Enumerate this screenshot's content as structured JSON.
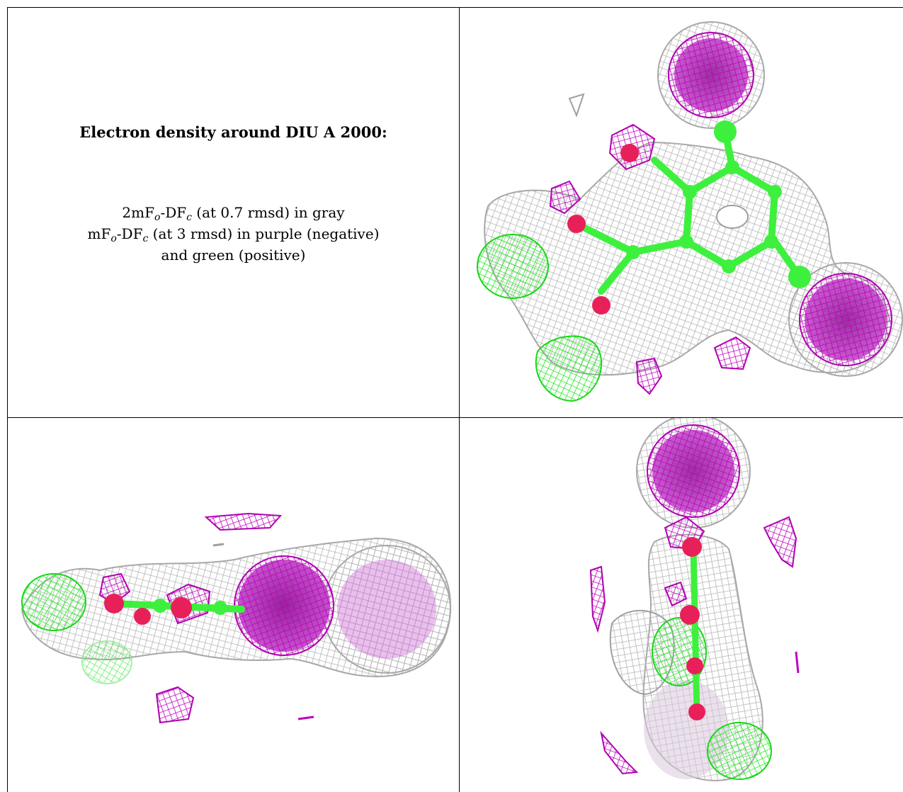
{
  "figure": {
    "title": "Electron density around DIU A 2000:",
    "lines": [
      {
        "pre": "2mF",
        "s1": "o",
        "mid": "-DF",
        "s2": "c",
        "post": " (at 0.7 rmsd) in gray"
      },
      {
        "pre": "mF",
        "s1": "o",
        "mid": "-DF",
        "s2": "c",
        "post": " (at 3 rmsd) in purple (negative)"
      },
      {
        "pre": "",
        "s1": "",
        "mid": "",
        "s2": "",
        "post": "and green (positive)"
      }
    ]
  },
  "colors": {
    "map_2fofc": "#b4b4b4",
    "map_negative": "#c000c0",
    "map_positive": "#22e822",
    "carbon": "#3ef03e",
    "oxygen": "#e8205a",
    "iodine": "#9a1aa0"
  },
  "panels": [
    {
      "id": "top-right",
      "view": "face-on"
    },
    {
      "id": "bottom-left",
      "view": "side"
    },
    {
      "id": "bottom-right",
      "view": "end-on"
    }
  ]
}
